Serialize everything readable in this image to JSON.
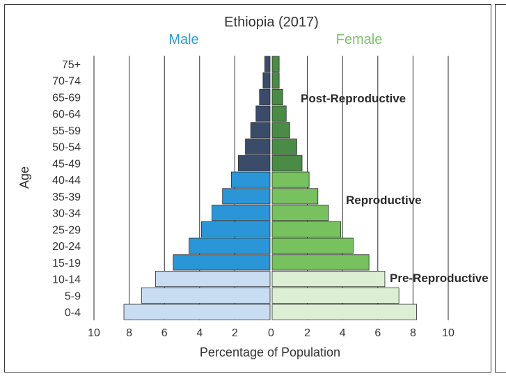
{
  "chart_data": {
    "type": "bar",
    "orientation": "horizontal-population-pyramid",
    "title": "Ethiopia (2017)",
    "xlabel": "Percentage of Population",
    "ylabel": "Age",
    "xlim": [
      -10,
      10
    ],
    "x_tick_labels": [
      "10",
      "8",
      "6",
      "4",
      "2",
      "0",
      "2",
      "4",
      "6",
      "8",
      "10"
    ],
    "x_tick_values": [
      -10,
      -8,
      -6,
      -4,
      -2,
      0,
      2,
      4,
      6,
      8,
      10
    ],
    "categories": [
      "0-4",
      "5-9",
      "10-14",
      "15-19",
      "20-24",
      "25-29",
      "30-34",
      "35-39",
      "40-44",
      "45-49",
      "50-54",
      "55-59",
      "60-64",
      "65-69",
      "70-74",
      "75+"
    ],
    "stage_of_category": [
      "pre",
      "pre",
      "pre",
      "repro",
      "repro",
      "repro",
      "repro",
      "repro",
      "repro",
      "post",
      "post",
      "post",
      "post",
      "post",
      "post",
      "post"
    ],
    "series": [
      {
        "name": "Male",
        "color": "#2f9bd8",
        "values": [
          8.3,
          7.3,
          6.5,
          5.5,
          4.6,
          3.9,
          3.3,
          2.7,
          2.2,
          1.8,
          1.4,
          1.1,
          0.8,
          0.6,
          0.4,
          0.3
        ]
      },
      {
        "name": "Female",
        "color": "#6ab54a",
        "values": [
          8.2,
          7.2,
          6.4,
          5.5,
          4.6,
          3.9,
          3.2,
          2.6,
          2.1,
          1.7,
          1.4,
          1.0,
          0.8,
          0.6,
          0.4,
          0.4
        ]
      }
    ],
    "colors": {
      "male": {
        "pre": "#c8dcf2",
        "repro": "#2a96d8",
        "post": "#3b4c6b"
      },
      "female": {
        "pre": "#dcefd4",
        "repro": "#77c15f",
        "post": "#4a8b45"
      },
      "male_label": "#2f9bd8",
      "female_label": "#7cc36a",
      "grid": "#2a2a2a"
    },
    "annotations": [
      {
        "label": "Post-Reproductive",
        "stage": "post"
      },
      {
        "label": "Reproductive",
        "stage": "repro"
      },
      {
        "label": "Pre-Reproductive",
        "stage": "pre"
      }
    ],
    "legend": {
      "male_label": "Male",
      "female_label": "Female",
      "placement": "top"
    }
  }
}
